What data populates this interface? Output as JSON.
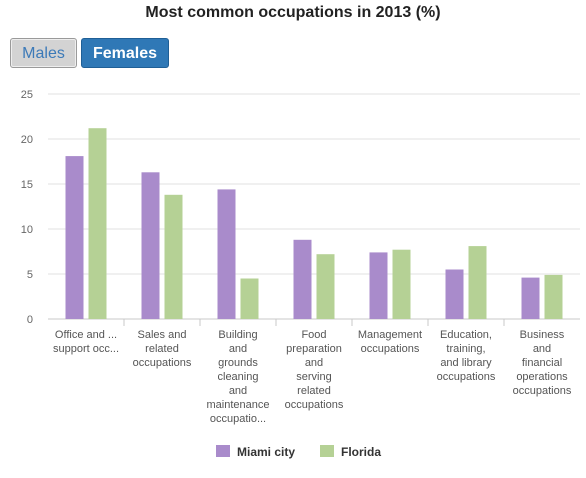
{
  "header": {
    "title": "Most common occupations in 2013 (%)"
  },
  "toggles": {
    "males": "Males",
    "females": "Females"
  },
  "chart_data": {
    "type": "bar",
    "title": "Most common occupations in 2013 (%)",
    "categories": [
      [
        "Office and ...",
        "support occ..."
      ],
      [
        "Sales and",
        "related",
        "occupations"
      ],
      [
        "Building",
        "and",
        "grounds",
        "cleaning",
        "and",
        "maintenance",
        "occupatio..."
      ],
      [
        "Food",
        "preparation",
        "and",
        "serving",
        "related",
        "occupations"
      ],
      [
        "Management",
        "occupations"
      ],
      [
        "Education,",
        "training,",
        "and library",
        "occupations"
      ],
      [
        "Business",
        "and",
        "financial",
        "operations",
        "occupations"
      ]
    ],
    "series": [
      {
        "name": "Miami city",
        "color": "#a98bcb",
        "values": [
          18.1,
          16.3,
          14.4,
          8.8,
          7.4,
          5.5,
          4.6
        ]
      },
      {
        "name": "Florida",
        "color": "#b5d195",
        "values": [
          21.2,
          13.8,
          4.5,
          7.2,
          7.7,
          8.1,
          4.9
        ]
      }
    ],
    "ylim": [
      0,
      25
    ],
    "yticks": [
      0,
      5,
      10,
      15,
      20,
      25
    ],
    "grid": true,
    "legend_position": "bottom-center"
  }
}
